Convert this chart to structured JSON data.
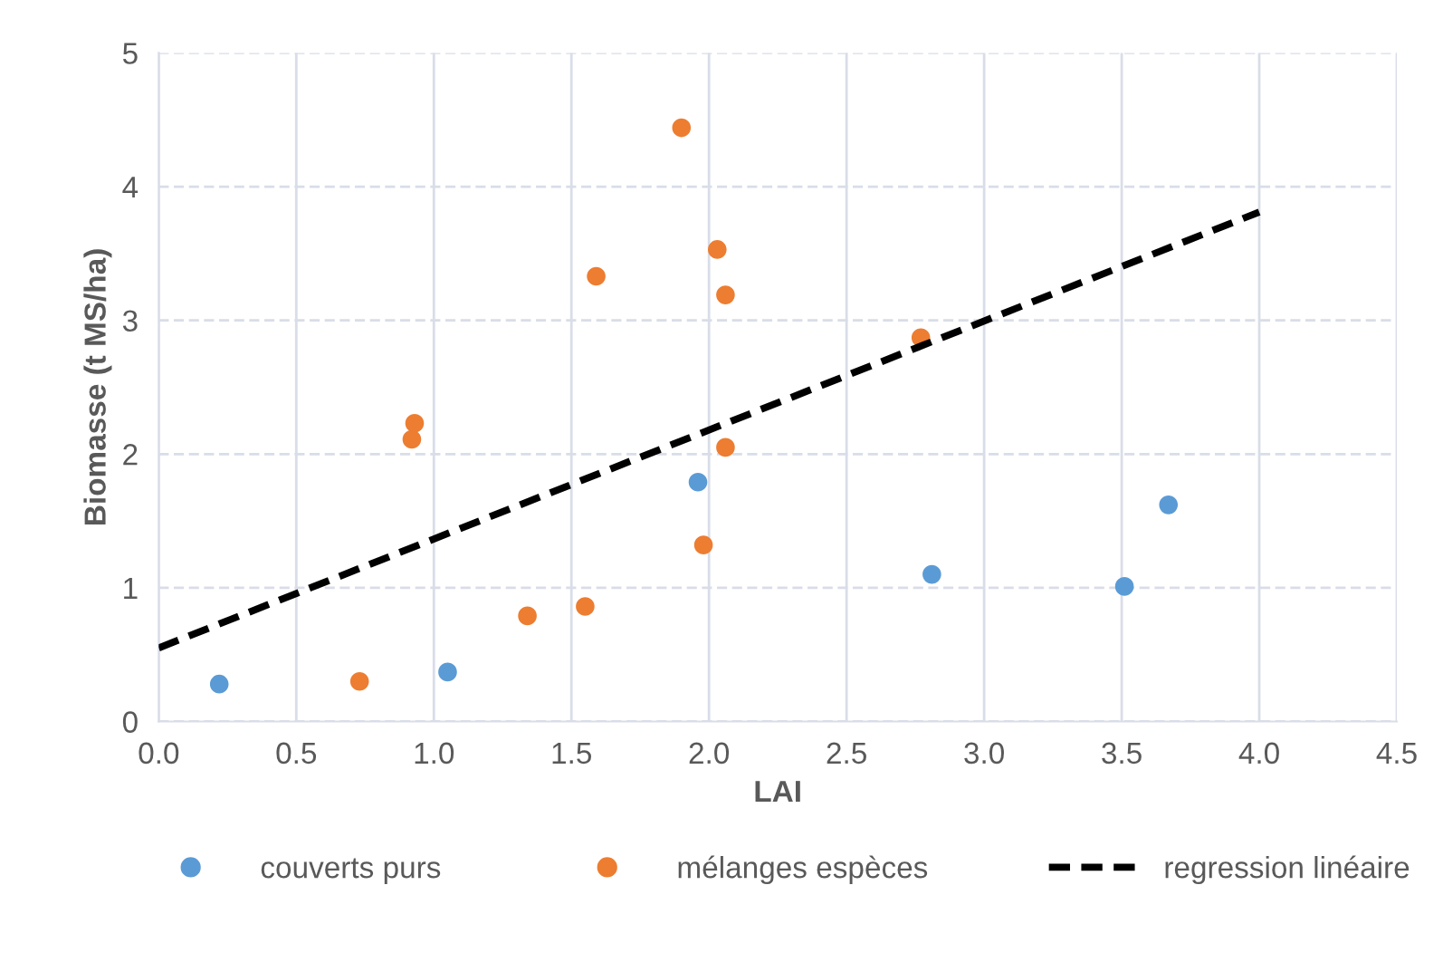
{
  "chart_data": {
    "type": "scatter",
    "xlabel": "LAI",
    "ylabel": "Biomasse (t MS/ha)",
    "series": [
      {
        "name": "couverts purs",
        "color": "#5b9bd5",
        "x": [
          0.22,
          1.05,
          1.96,
          2.81,
          3.51,
          3.67
        ],
        "values": [
          0.28,
          0.37,
          1.79,
          1.1,
          1.01,
          1.62
        ]
      },
      {
        "name": "mélanges espèces",
        "color": "#ed7d31",
        "x": [
          0.73,
          0.92,
          0.93,
          1.34,
          1.55,
          1.59,
          1.9,
          1.98,
          2.03,
          2.06,
          2.06,
          2.77
        ],
        "values": [
          0.3,
          2.11,
          2.23,
          0.79,
          0.86,
          3.33,
          4.44,
          1.32,
          3.53,
          3.19,
          2.05,
          2.87
        ]
      },
      {
        "name": "regression linéaire",
        "type": "line",
        "color": "#000000",
        "line_style": "dashed",
        "marker": "none",
        "x": [
          0.0,
          4.0
        ],
        "values": [
          0.55,
          3.81
        ]
      }
    ],
    "marker": "circle",
    "xlim": [
      0,
      4.5
    ],
    "xticks": [
      {
        "value": 0,
        "label": "0.0"
      },
      {
        "value": 0.5,
        "label": "0.5"
      },
      {
        "value": 1,
        "label": "1.0"
      },
      {
        "value": 1.5,
        "label": "1.5"
      },
      {
        "value": 2,
        "label": "2.0"
      },
      {
        "value": 2.5,
        "label": "2.5"
      },
      {
        "value": 3,
        "label": "3.0"
      },
      {
        "value": 3.5,
        "label": "3.5"
      },
      {
        "value": 4,
        "label": "4.0"
      },
      {
        "value": 4.5,
        "label": "4.5"
      }
    ],
    "ylim": [
      0,
      5
    ],
    "yticks": [
      0,
      1,
      2,
      3,
      4,
      5
    ],
    "grid": true,
    "legend": "bottom"
  }
}
